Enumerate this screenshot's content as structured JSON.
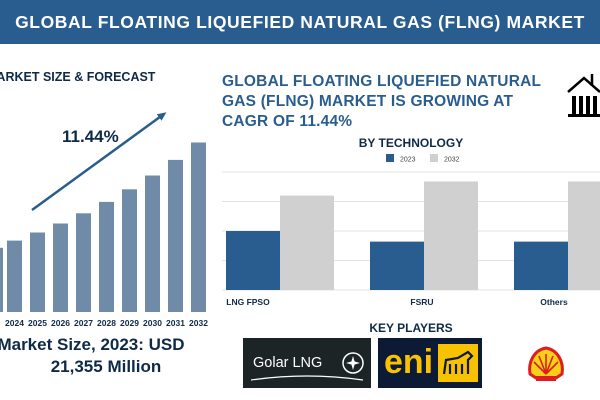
{
  "header": {
    "title": "GLOBAL FLOATING LIQUEFIED NATURAL GAS (FLNG) MARKET"
  },
  "forecast": {
    "title": "MARKET SIZE & FORECAST",
    "cagr_label": "11.44%",
    "market_size_line1": "Market Size, 2023: USD",
    "market_size_line2": "21,355 Million"
  },
  "headline": {
    "line1": "GLOBAL FLOATING LIQUEFIED NATURAL",
    "line2": "GAS (FLNG) MARKET IS GROWING AT",
    "line3": "CAGR OF 11.44%"
  },
  "technology": {
    "title": "BY TECHNOLOGY"
  },
  "key_players": {
    "title": "KEY PLAYERS",
    "logos": [
      {
        "name": "Golar LNG",
        "text": "Golar LNG"
      },
      {
        "name": "eni",
        "text": "eni"
      },
      {
        "name": "Shell",
        "icon": "shell-logo-icon"
      }
    ]
  },
  "colors": {
    "header": "#2a5d8f",
    "bar_forecast": "#6f8ba8",
    "bar_2023": "#2a5d8f",
    "bar_2032": "#d0d0d0",
    "arrow": "#2a5d8f",
    "dark_text": "#0f2a47"
  },
  "chart_data": [
    {
      "type": "bar",
      "title": "MARKET SIZE & FORECAST",
      "categories": [
        "2024",
        "2025",
        "2026",
        "2027",
        "2028",
        "2029",
        "2030",
        "2031",
        "2032"
      ],
      "values": [
        23.8,
        26.5,
        29.5,
        32.9,
        36.7,
        40.9,
        45.5,
        50.7,
        56.5
      ],
      "leading_bar_value": 21.4,
      "ylim": [
        0,
        60
      ],
      "annotation": "11.44%",
      "grid": false
    },
    {
      "type": "bar",
      "title": "BY TECHNOLOGY",
      "categories": [
        "LNG FPSO",
        "FSRU",
        "Others"
      ],
      "series": [
        {
          "name": "2023",
          "values": [
            50,
            41,
            41
          ]
        },
        {
          "name": "2032",
          "values": [
            80,
            92,
            92
          ]
        }
      ],
      "ylim": [
        0,
        100
      ],
      "legend": "top-center",
      "grid": true
    }
  ]
}
